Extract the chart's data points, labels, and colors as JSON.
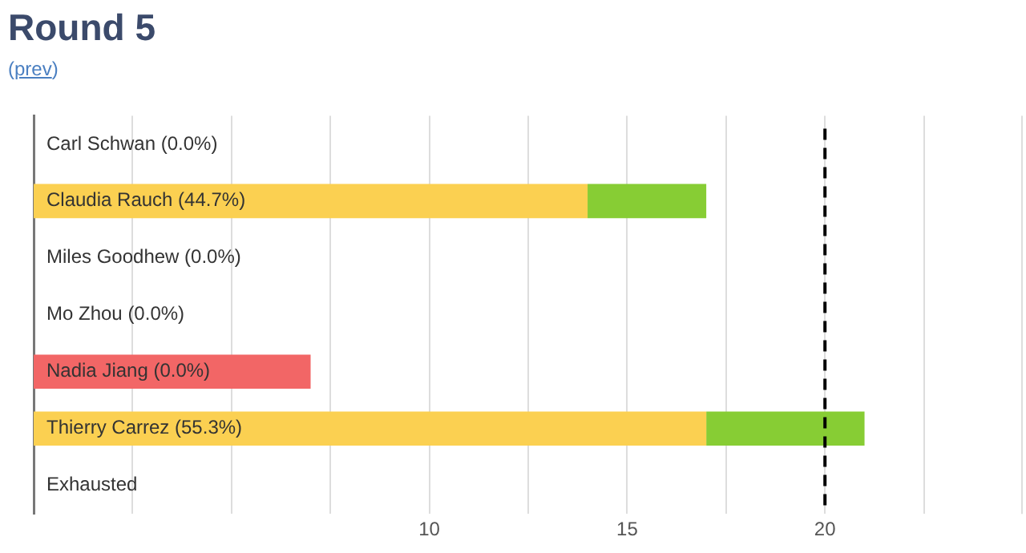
{
  "chart_data": {
    "type": "bar",
    "orientation": "horizontal",
    "stacked": true,
    "title": "Round 5",
    "subtitle": "(prev)",
    "categories": [
      "Carl Schwan (0.0%)",
      "Claudia Rauch (44.7%)",
      "Miles Goodhew (0.0%)",
      "Mo Zhou (0.0%)",
      "Nadia Jiang (0.0%)",
      "Thierry Carrez (55.3%)",
      "Exhausted"
    ],
    "series": [
      {
        "colors": [
          "#fbd051",
          "#fbd051",
          "#fbd051",
          "#fbd051",
          "#f26666",
          "#fbd051",
          "#fbd051"
        ],
        "values": [
          0,
          14,
          0,
          0,
          7,
          17,
          0
        ]
      },
      {
        "color": "#87cd34",
        "values": [
          0,
          3,
          0,
          0,
          0,
          4,
          0
        ]
      }
    ],
    "xlim": [
      0,
      25
    ],
    "xticks": [
      {
        "value": 2.5,
        "label": null
      },
      {
        "value": 5,
        "label": null
      },
      {
        "value": 7.5,
        "label": null
      },
      10,
      {
        "value": 12.5,
        "label": null
      },
      15,
      {
        "value": 17.5,
        "label": null
      },
      20,
      {
        "value": 22.5,
        "label": null
      }
    ],
    "grid": "x",
    "legend": false,
    "ref_lines": [
      {
        "axis": "x",
        "value": 20,
        "color": "#000000",
        "line_style": "dashed"
      }
    ]
  }
}
